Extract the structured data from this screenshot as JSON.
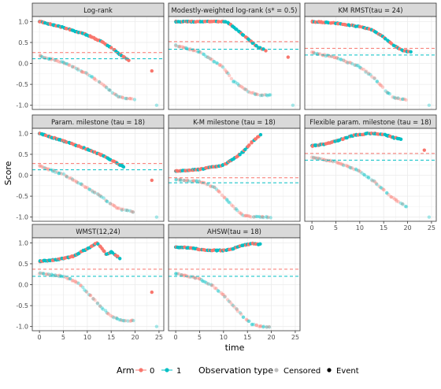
{
  "figure": {
    "ylabel": "Score",
    "xlabel": "time",
    "xlim": [
      -1.5,
      26
    ],
    "ylim": [
      -1.1,
      1.12
    ],
    "xticks": [
      0,
      5,
      10,
      15,
      20,
      25
    ],
    "yticks": [
      -1.0,
      -0.5,
      0.0,
      0.5,
      1.0
    ],
    "ytick_labels": [
      "-1.0",
      "-0.5",
      "0.0",
      "0.5",
      "1.0"
    ],
    "xtick_labels": [
      "0",
      "5",
      "10",
      "15",
      "20",
      "25"
    ],
    "colors": {
      "arm0": "#F8766D",
      "arm1": "#00BFC4",
      "censored": "#BEBEBE",
      "event": "#000000",
      "strip_bg": "#D9D9D9",
      "grid": "#EBEBEB"
    }
  },
  "legend": {
    "arm_title": "Arm",
    "arm_items": [
      "0",
      "1"
    ],
    "obs_title": "Observation type",
    "obs_items": [
      "Censored",
      "Event"
    ]
  },
  "chart_data": [
    {
      "type": "scatter",
      "title": "Log-rank",
      "hlines": [
        {
          "arm": "0",
          "y": 0.26
        },
        {
          "arm": "1",
          "y": 0.11
        }
      ],
      "event_curve": [
        [
          0,
          1.0
        ],
        [
          5,
          0.86
        ],
        [
          10,
          0.68
        ],
        [
          13,
          0.52
        ],
        [
          15,
          0.38
        ],
        [
          17,
          0.2
        ],
        [
          19,
          0.05
        ]
      ],
      "censored_curve": [
        [
          0,
          0.18
        ],
        [
          5,
          0.02
        ],
        [
          10,
          -0.25
        ],
        [
          13,
          -0.48
        ],
        [
          15,
          -0.68
        ],
        [
          17,
          -0.82
        ],
        [
          20,
          -0.85
        ]
      ],
      "outliers": [
        {
          "x": 23.5,
          "y": -0.18,
          "arm": "0",
          "obs": "event"
        },
        {
          "x": 24.5,
          "y": -1.0,
          "arm": "1",
          "obs": "censored"
        }
      ]
    },
    {
      "type": "scatter",
      "title": "Modestly-weighted log-rank (s* = 0.5)",
      "hlines": [
        {
          "arm": "0",
          "y": 0.52
        },
        {
          "arm": "1",
          "y": 0.34
        }
      ],
      "event_curve": [
        [
          0,
          1.0
        ],
        [
          5,
          1.0
        ],
        [
          10,
          1.0
        ],
        [
          11,
          0.97
        ],
        [
          13,
          0.78
        ],
        [
          15,
          0.6
        ],
        [
          17,
          0.4
        ],
        [
          19,
          0.3
        ]
      ],
      "censored_curve": [
        [
          0,
          0.43
        ],
        [
          5,
          0.28
        ],
        [
          10,
          -0.1
        ],
        [
          12,
          -0.42
        ],
        [
          15,
          -0.66
        ],
        [
          17,
          -0.75
        ],
        [
          20,
          -0.76
        ]
      ],
      "outliers": [
        {
          "x": 23.5,
          "y": 0.15,
          "arm": "0",
          "obs": "event"
        },
        {
          "x": 24.5,
          "y": -1.0,
          "arm": "1",
          "obs": "censored"
        }
      ]
    },
    {
      "type": "scatter",
      "title": "KM RMST(tau = 24)",
      "hlines": [
        {
          "arm": "0",
          "y": 0.36
        },
        {
          "arm": "1",
          "y": 0.2
        }
      ],
      "event_curve": [
        [
          0,
          1.0
        ],
        [
          5,
          0.96
        ],
        [
          10,
          0.88
        ],
        [
          13,
          0.78
        ],
        [
          15,
          0.62
        ],
        [
          17,
          0.44
        ],
        [
          19,
          0.3
        ],
        [
          21,
          0.28
        ]
      ],
      "censored_curve": [
        [
          0,
          0.26
        ],
        [
          5,
          0.14
        ],
        [
          10,
          -0.08
        ],
        [
          13,
          -0.35
        ],
        [
          15,
          -0.6
        ],
        [
          17,
          -0.82
        ],
        [
          20,
          -0.88
        ]
      ],
      "outliers": [
        {
          "x": 24.5,
          "y": -1.0,
          "arm": "1",
          "obs": "censored"
        }
      ]
    },
    {
      "type": "scatter",
      "title": "Param. milestone (tau = 18)",
      "hlines": [
        {
          "arm": "0",
          "y": 0.28
        },
        {
          "arm": "1",
          "y": 0.13
        }
      ],
      "event_curve": [
        [
          0,
          1.0
        ],
        [
          5,
          0.82
        ],
        [
          10,
          0.62
        ],
        [
          13,
          0.48
        ],
        [
          15,
          0.36
        ],
        [
          17,
          0.24
        ],
        [
          18,
          0.18
        ]
      ],
      "censored_curve": [
        [
          0,
          0.22
        ],
        [
          5,
          0.02
        ],
        [
          10,
          -0.3
        ],
        [
          13,
          -0.52
        ],
        [
          15,
          -0.7
        ],
        [
          17,
          -0.82
        ],
        [
          20,
          -0.88
        ]
      ],
      "outliers": [
        {
          "x": 23.5,
          "y": -0.12,
          "arm": "0",
          "obs": "event"
        },
        {
          "x": 24.5,
          "y": -1.0,
          "arm": "1",
          "obs": "censored"
        }
      ]
    },
    {
      "type": "scatter",
      "title": "K-M milestone (tau = 18)",
      "hlines": [
        {
          "arm": "0",
          "y": -0.06
        },
        {
          "arm": "1",
          "y": -0.18
        }
      ],
      "event_curve": [
        [
          0,
          0.1
        ],
        [
          5,
          0.14
        ],
        [
          10,
          0.24
        ],
        [
          12,
          0.38
        ],
        [
          14,
          0.55
        ],
        [
          15,
          0.68
        ],
        [
          16,
          0.8
        ],
        [
          17,
          0.9
        ],
        [
          18,
          1.0
        ]
      ],
      "censored_curve": [
        [
          0,
          -0.1
        ],
        [
          5,
          -0.15
        ],
        [
          8,
          -0.28
        ],
        [
          10,
          -0.5
        ],
        [
          12,
          -0.75
        ],
        [
          14,
          -0.95
        ],
        [
          16,
          -1.0
        ],
        [
          25,
          -1.0
        ]
      ],
      "outliers": []
    },
    {
      "type": "scatter",
      "title": "Flexible param. milestone (tau = 18)",
      "hlines": [
        {
          "arm": "0",
          "y": 0.52
        },
        {
          "arm": "1",
          "y": 0.36
        }
      ],
      "event_curve": [
        [
          0,
          0.7
        ],
        [
          3,
          0.75
        ],
        [
          6,
          0.85
        ],
        [
          9,
          0.96
        ],
        [
          12,
          1.0
        ],
        [
          15,
          0.98
        ],
        [
          17,
          0.9
        ],
        [
          19,
          0.86
        ]
      ],
      "censored_curve": [
        [
          0,
          0.43
        ],
        [
          5,
          0.32
        ],
        [
          10,
          0.1
        ],
        [
          13,
          -0.15
        ],
        [
          15,
          -0.35
        ],
        [
          17,
          -0.55
        ],
        [
          20,
          -0.78
        ],
        [
          23,
          -0.9
        ]
      ],
      "outliers": [
        {
          "x": 23.5,
          "y": 0.6,
          "arm": "0",
          "obs": "event"
        },
        {
          "x": 24.5,
          "y": -1.0,
          "arm": "1",
          "obs": "censored"
        }
      ]
    },
    {
      "type": "scatter",
      "title": "WMST(12,24)",
      "hlines": [
        {
          "arm": "0",
          "y": 0.37
        },
        {
          "arm": "1",
          "y": 0.2
        }
      ],
      "event_curve": [
        [
          0,
          0.56
        ],
        [
          4,
          0.6
        ],
        [
          7,
          0.68
        ],
        [
          9,
          0.8
        ],
        [
          11,
          0.92
        ],
        [
          12,
          1.0
        ],
        [
          13,
          0.88
        ],
        [
          14,
          0.72
        ],
        [
          15,
          0.78
        ],
        [
          17,
          0.62
        ]
      ],
      "censored_curve": [
        [
          0,
          0.27
        ],
        [
          5,
          0.2
        ],
        [
          8,
          0.05
        ],
        [
          11,
          -0.3
        ],
        [
          13,
          -0.55
        ],
        [
          15,
          -0.75
        ],
        [
          17,
          -0.85
        ],
        [
          20,
          -0.86
        ]
      ],
      "outliers": [
        {
          "x": 23.5,
          "y": -0.18,
          "arm": "0",
          "obs": "event"
        },
        {
          "x": 24.5,
          "y": -1.0,
          "arm": "1",
          "obs": "censored"
        }
      ]
    },
    {
      "type": "scatter",
      "title": "AHSW(tau = 18)",
      "hlines": [
        {
          "arm": "0",
          "y": 0.37
        },
        {
          "arm": "1",
          "y": 0.2
        }
      ],
      "event_curve": [
        [
          0,
          0.9
        ],
        [
          3,
          0.88
        ],
        [
          5,
          0.84
        ],
        [
          8,
          0.82
        ],
        [
          10,
          0.82
        ],
        [
          12,
          0.86
        ],
        [
          14,
          0.94
        ],
        [
          16,
          0.98
        ],
        [
          18,
          0.96
        ]
      ],
      "censored_curve": [
        [
          0,
          0.27
        ],
        [
          5,
          0.14
        ],
        [
          8,
          -0.05
        ],
        [
          10,
          -0.25
        ],
        [
          12,
          -0.5
        ],
        [
          14,
          -0.75
        ],
        [
          16,
          -0.95
        ],
        [
          18,
          -1.0
        ],
        [
          25,
          -1.0
        ]
      ],
      "outliers": []
    }
  ]
}
